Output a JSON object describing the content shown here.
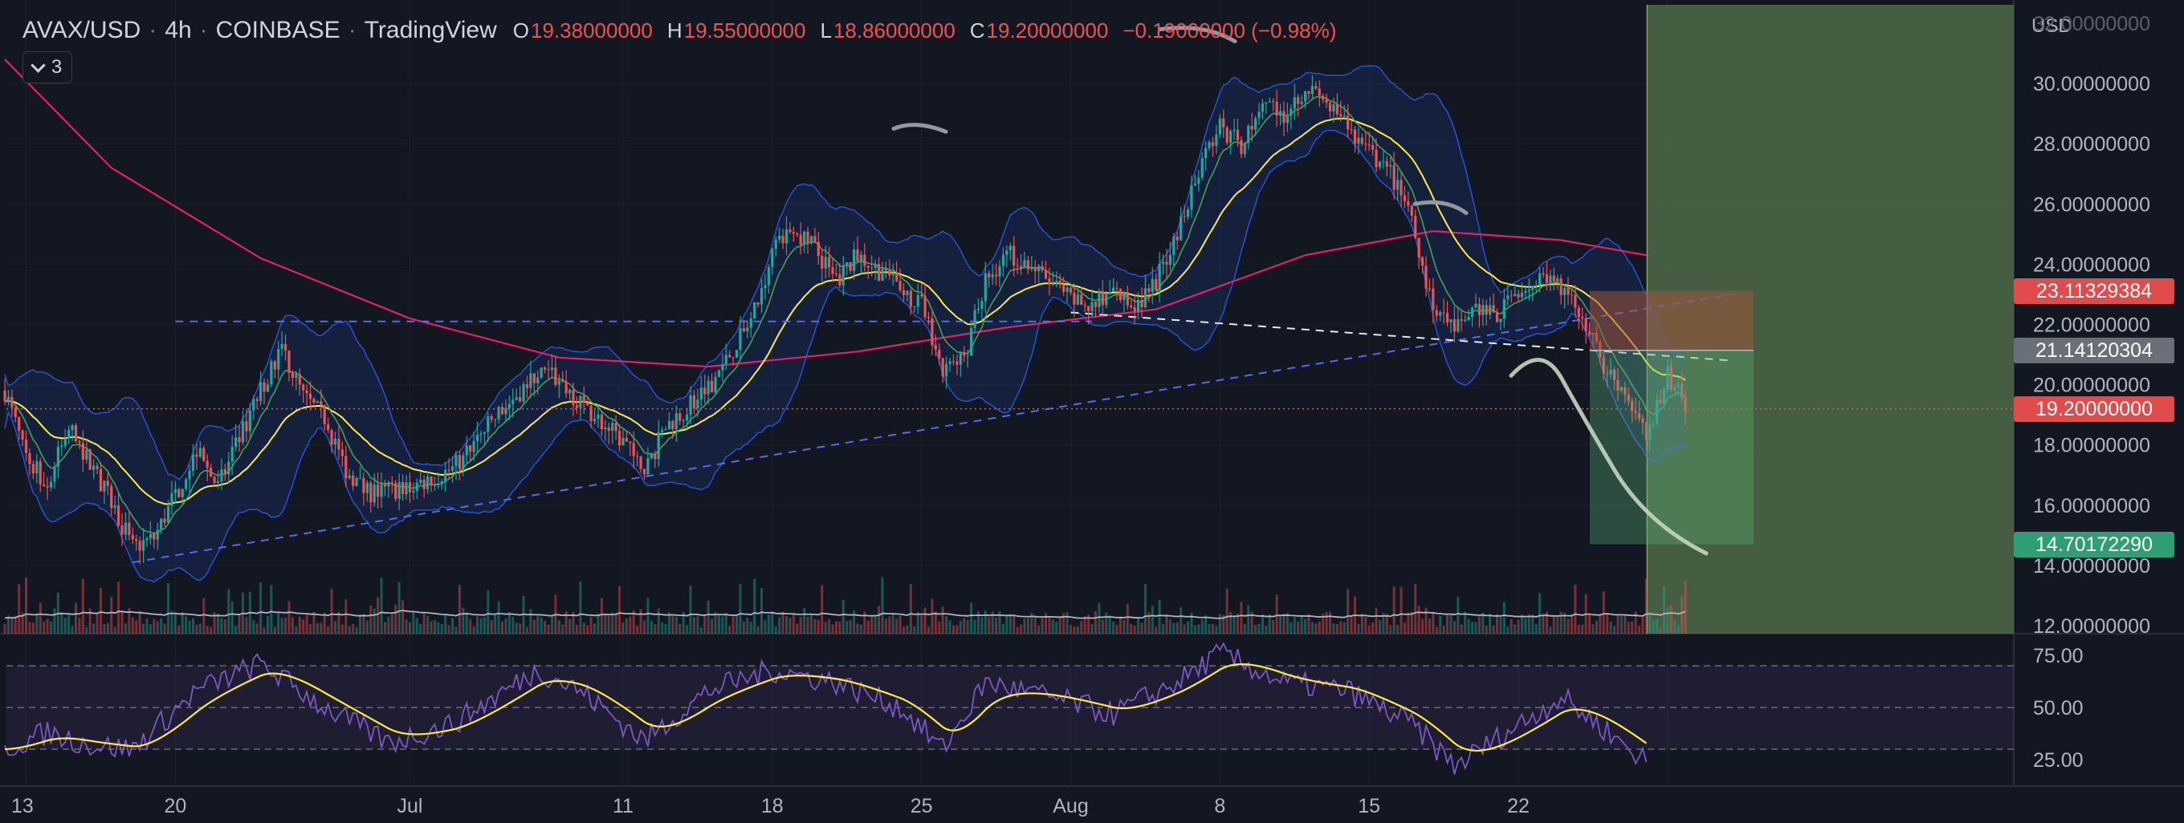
{
  "header": {
    "symbol": "AVAX/USD",
    "interval": "4h",
    "exchange": "COINBASE",
    "platform": "TradingView",
    "ohlc": {
      "o_label": "O",
      "o_value": "19.38000000",
      "h_label": "H",
      "h_value": "19.55000000",
      "l_label": "L",
      "l_value": "18.86000000",
      "c_label": "C",
      "c_value": "19.20000000",
      "change": "−0.19000000 (−0.98%)"
    }
  },
  "indicators_toggle": {
    "count": "3"
  },
  "price_axis": {
    "currency": "USD",
    "labels": [
      "30.00000000",
      "28.00000000",
      "26.00000000",
      "24.00000000",
      "22.00000000",
      "20.00000000",
      "18.00000000",
      "16.00000000",
      "14.00000000",
      "12.00000000"
    ],
    "partial_top_label": "32.00000000"
  },
  "price_tags": [
    {
      "name": "stop-loss-tag",
      "value": "23.11329384",
      "color": "#e04b4b"
    },
    {
      "name": "entry-tag",
      "value": "21.14120304",
      "color": "#6a6f7a"
    },
    {
      "name": "current-price-tag",
      "value": "19.20000000",
      "color": "#e04b4b"
    },
    {
      "name": "take-profit-tag",
      "value": "14.70172290",
      "color": "#2f9e74"
    }
  ],
  "rsi_axis": {
    "labels": [
      "75.00",
      "50.00",
      "25.00"
    ]
  },
  "time_axis": {
    "labels": [
      "13",
      "20",
      "Jul",
      "11",
      "18",
      "25",
      "Aug",
      "8",
      "15",
      "22"
    ]
  },
  "colors": {
    "background": "#131722",
    "up": "#26a69a",
    "down": "#ef5350",
    "bollinger": "#2962ff",
    "ma_fast": "#4caf50",
    "ma_mid": "#ffeb3b",
    "ma_slow": "#e91e63",
    "rsi": "#7e57c2",
    "projection_zone": "#4f6b46"
  },
  "chart_data": {
    "type": "candlestick",
    "title": "AVAX/USD · 4h · COINBASE",
    "ylim": [
      12,
      32
    ],
    "ylabel": "USD",
    "last": {
      "open": 19.38,
      "high": 19.55,
      "low": 18.86,
      "close": 19.2,
      "change": -0.19,
      "change_pct": -0.98
    },
    "close_path": [
      {
        "x": "Jun 12",
        "y": 19.8
      },
      {
        "x": "Jun 13",
        "y": 17.6
      },
      {
        "x": "Jun 14",
        "y": 16.7
      },
      {
        "x": "Jun 15",
        "y": 18.6
      },
      {
        "x": "Jun 17",
        "y": 16.1
      },
      {
        "x": "Jun 18",
        "y": 14.6
      },
      {
        "x": "Jun 19",
        "y": 14.9
      },
      {
        "x": "Jun 21",
        "y": 17.8
      },
      {
        "x": "Jun 22",
        "y": 16.6
      },
      {
        "x": "Jun 24",
        "y": 19.8
      },
      {
        "x": "Jun 25",
        "y": 21.2
      },
      {
        "x": "Jun 26",
        "y": 19.6
      },
      {
        "x": "Jun 27",
        "y": 18.9
      },
      {
        "x": "Jun 28",
        "y": 17.2
      },
      {
        "x": "Jun 29",
        "y": 16.4
      },
      {
        "x": "Jul 1",
        "y": 16.6
      },
      {
        "x": "Jul 3",
        "y": 17.2
      },
      {
        "x": "Jul 5",
        "y": 18.9
      },
      {
        "x": "Jul 7",
        "y": 20.4
      },
      {
        "x": "Jul 8",
        "y": 20.2
      },
      {
        "x": "Jul 9",
        "y": 19.4
      },
      {
        "x": "Jul 11",
        "y": 18.1
      },
      {
        "x": "Jul 12",
        "y": 17.1
      },
      {
        "x": "Jul 13",
        "y": 18.6
      },
      {
        "x": "Jul 15",
        "y": 19.9
      },
      {
        "x": "Jul 17",
        "y": 22.1
      },
      {
        "x": "Jul 18",
        "y": 24.4
      },
      {
        "x": "Jul 19",
        "y": 25.2
      },
      {
        "x": "Jul 20",
        "y": 24.5
      },
      {
        "x": "Jul 21",
        "y": 23.4
      },
      {
        "x": "Jul 22",
        "y": 24.3
      },
      {
        "x": "Jul 23",
        "y": 23.8
      },
      {
        "x": "Jul 25",
        "y": 22.6
      },
      {
        "x": "Jul 26",
        "y": 20.4
      },
      {
        "x": "Jul 27",
        "y": 20.9
      },
      {
        "x": "Jul 28",
        "y": 23.4
      },
      {
        "x": "Jul 29",
        "y": 24.4
      },
      {
        "x": "Jul 30",
        "y": 24.0
      },
      {
        "x": "Aug 1",
        "y": 22.8
      },
      {
        "x": "Aug 2",
        "y": 22.6
      },
      {
        "x": "Aug 3",
        "y": 23.1
      },
      {
        "x": "Aug 4",
        "y": 22.6
      },
      {
        "x": "Aug 5",
        "y": 23.4
      },
      {
        "x": "Aug 6",
        "y": 25.1
      },
      {
        "x": "Aug 7",
        "y": 27.2
      },
      {
        "x": "Aug 8",
        "y": 28.6
      },
      {
        "x": "Aug 9",
        "y": 27.9
      },
      {
        "x": "Aug 10",
        "y": 29.5
      },
      {
        "x": "Aug 11",
        "y": 29.0
      },
      {
        "x": "Aug 12",
        "y": 29.9
      },
      {
        "x": "Aug 13",
        "y": 29.3
      },
      {
        "x": "Aug 14",
        "y": 28.5
      },
      {
        "x": "Aug 15",
        "y": 27.7
      },
      {
        "x": "Aug 16",
        "y": 27.0
      },
      {
        "x": "Aug 17",
        "y": 25.6
      },
      {
        "x": "Aug 18",
        "y": 22.3
      },
      {
        "x": "Aug 19",
        "y": 21.8
      },
      {
        "x": "Aug 20",
        "y": 22.6
      },
      {
        "x": "Aug 21",
        "y": 22.2
      },
      {
        "x": "Aug 22",
        "y": 23.2
      },
      {
        "x": "Aug 23",
        "y": 23.4
      },
      {
        "x": "Aug 24",
        "y": 23.3
      },
      {
        "x": "Aug 25",
        "y": 22.4
      },
      {
        "x": "Aug 26",
        "y": 20.6
      },
      {
        "x": "Aug 27",
        "y": 19.8
      },
      {
        "x": "Aug 28",
        "y": 18.2
      },
      {
        "x": "Aug 29",
        "y": 20.3
      },
      {
        "x": "Aug 30",
        "y": 19.2
      }
    ],
    "ma_slow_path": [
      {
        "x": "Jun 12",
        "y": 30.8
      },
      {
        "x": "Jun 17",
        "y": 27.2
      },
      {
        "x": "Jun 24",
        "y": 24.2
      },
      {
        "x": "Jul 1",
        "y": 22.2
      },
      {
        "x": "Jul 8",
        "y": 20.9
      },
      {
        "x": "Jul 15",
        "y": 20.6
      },
      {
        "x": "Jul 22",
        "y": 21.1
      },
      {
        "x": "Jul 29",
        "y": 21.9
      },
      {
        "x": "Aug 5",
        "y": 22.5
      },
      {
        "x": "Aug 12",
        "y": 24.3
      },
      {
        "x": "Aug 18",
        "y": 25.1
      },
      {
        "x": "Aug 24",
        "y": 24.8
      },
      {
        "x": "Aug 28",
        "y": 24.3
      }
    ],
    "trendlines": [
      {
        "name": "horizontal-resistance",
        "from": {
          "x": "Jun 20",
          "y": 22.1
        },
        "to": {
          "x": "Aug 2",
          "y": 22.1
        }
      },
      {
        "name": "rising-support",
        "from": {
          "x": "Jun 18",
          "y": 14.1
        },
        "to": {
          "x": "Sep 1",
          "y": 23.0
        }
      },
      {
        "name": "falling-neckline",
        "from": {
          "x": "Aug 1",
          "y": 22.4
        },
        "to": {
          "x": "Sep 1",
          "y": 20.8
        }
      }
    ],
    "short_position": {
      "stop": 23.11329384,
      "entry": 21.14120304,
      "target": 14.7017229,
      "current": 19.2
    },
    "volume_note": "volume histogram overlaid at bottom of price pane",
    "rsi": {
      "ylim": [
        10,
        85
      ],
      "bands": [
        70,
        50,
        30
      ],
      "path": [
        {
          "x": "Jun 12",
          "y": 30
        },
        {
          "x": "Jun 14",
          "y": 38
        },
        {
          "x": "Jun 16",
          "y": 32
        },
        {
          "x": "Jun 18",
          "y": 30
        },
        {
          "x": "Jun 21",
          "y": 58
        },
        {
          "x": "Jun 24",
          "y": 71
        },
        {
          "x": "Jun 27",
          "y": 50
        },
        {
          "x": "Jun 30",
          "y": 33
        },
        {
          "x": "Jul 3",
          "y": 42
        },
        {
          "x": "Jul 7",
          "y": 68
        },
        {
          "x": "Jul 9",
          "y": 58
        },
        {
          "x": "Jul 12",
          "y": 34
        },
        {
          "x": "Jul 15",
          "y": 58
        },
        {
          "x": "Jul 18",
          "y": 68
        },
        {
          "x": "Jul 21",
          "y": 62
        },
        {
          "x": "Jul 24",
          "y": 50
        },
        {
          "x": "Jul 26",
          "y": 30
        },
        {
          "x": "Jul 28",
          "y": 62
        },
        {
          "x": "Jul 31",
          "y": 55
        },
        {
          "x": "Aug 3",
          "y": 47
        },
        {
          "x": "Aug 6",
          "y": 62
        },
        {
          "x": "Aug 8",
          "y": 76
        },
        {
          "x": "Aug 11",
          "y": 62
        },
        {
          "x": "Aug 14",
          "y": 58
        },
        {
          "x": "Aug 17",
          "y": 42
        },
        {
          "x": "Aug 19",
          "y": 22
        },
        {
          "x": "Aug 21",
          "y": 35
        },
        {
          "x": "Aug 24",
          "y": 55
        },
        {
          "x": "Aug 26",
          "y": 40
        },
        {
          "x": "Aug 28",
          "y": 24
        }
      ]
    }
  }
}
